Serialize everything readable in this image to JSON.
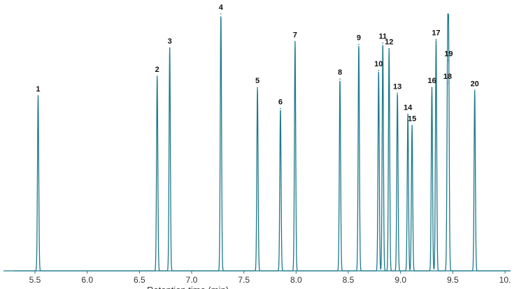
{
  "chart_data": {
    "type": "line",
    "title": "",
    "xlabel": "",
    "ylabel": "",
    "xlim": [
      5.3,
      10.0
    ],
    "ylim": [
      0,
      100
    ],
    "x_ticks": [
      5.5,
      6.0,
      6.5,
      7.0,
      7.5,
      8.0,
      8.5,
      9.0,
      9.5,
      10.0
    ],
    "x_tick_labels": [
      "5.5",
      "6.0",
      "6.5",
      "7.0",
      "7.5",
      "8.0",
      "8.5",
      "9.0",
      "9.5",
      "10."
    ],
    "grid": false,
    "colors": {
      "trace": "#1f7a8c",
      "axis": "#1f7a8c"
    },
    "peaks": [
      {
        "label": "1",
        "x": 5.53,
        "y": 68.2
      },
      {
        "label": "2",
        "x": 6.67,
        "y": 75.8
      },
      {
        "label": "3",
        "x": 6.79,
        "y": 86.8
      },
      {
        "label": "4",
        "x": 7.28,
        "y": 100.0
      },
      {
        "label": "5",
        "x": 7.63,
        "y": 71.4
      },
      {
        "label": "6",
        "x": 7.85,
        "y": 63.2
      },
      {
        "label": "7",
        "x": 7.99,
        "y": 89.3
      },
      {
        "label": "8",
        "x": 8.42,
        "y": 74.7
      },
      {
        "label": "9",
        "x": 8.6,
        "y": 88.2
      },
      {
        "label": "10",
        "x": 8.79,
        "y": 78.0
      },
      {
        "label": "11",
        "x": 8.83,
        "y": 88.7
      },
      {
        "label": "12",
        "x": 8.89,
        "y": 86.5
      },
      {
        "label": "13",
        "x": 8.97,
        "y": 69.2
      },
      {
        "label": "14",
        "x": 9.07,
        "y": 61.0
      },
      {
        "label": "15",
        "x": 9.11,
        "y": 56.6
      },
      {
        "label": "16",
        "x": 9.3,
        "y": 71.4
      },
      {
        "label": "17",
        "x": 9.34,
        "y": 90.1
      },
      {
        "label": "18",
        "x": 9.45,
        "y": 73.1
      },
      {
        "label": "19",
        "x": 9.46,
        "y": 81.9
      },
      {
        "label": "20",
        "x": 9.71,
        "y": 70.3
      }
    ]
  }
}
